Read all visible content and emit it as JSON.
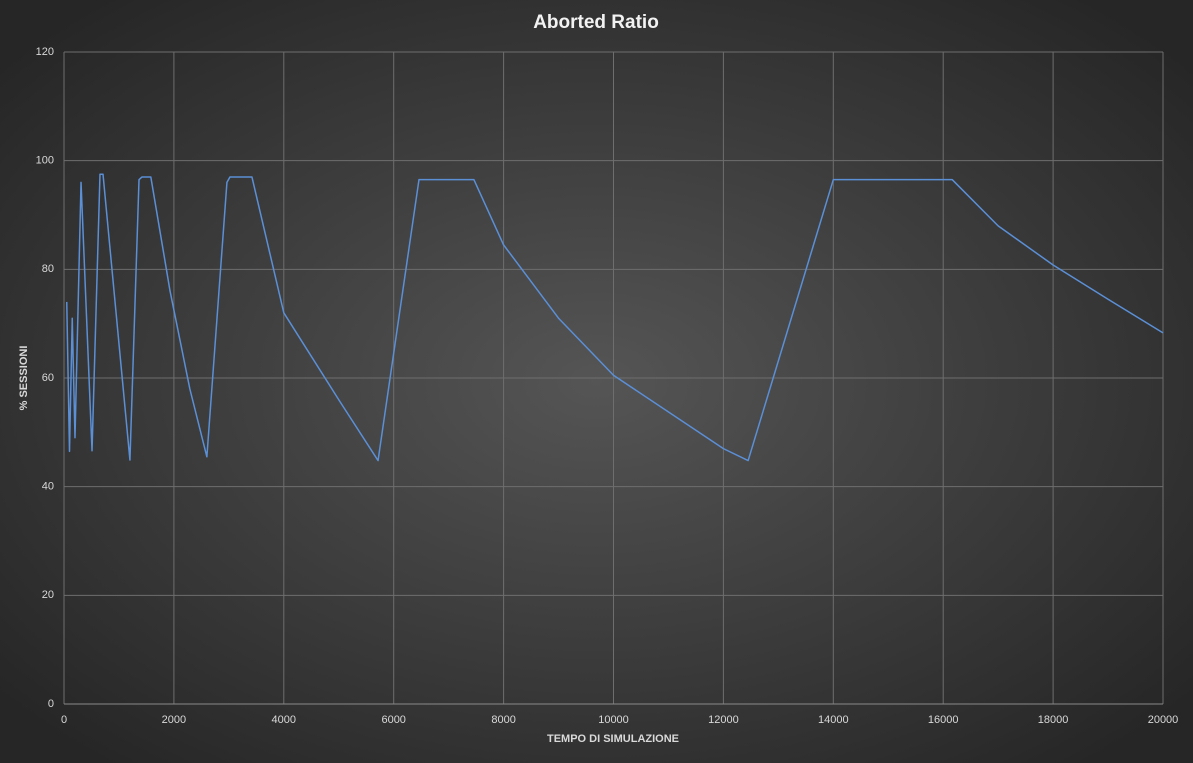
{
  "chart_data": {
    "type": "line",
    "title": "Aborted  Ratio",
    "x_label": "TEMPO DI SIMULAZIONE",
    "y_label": "% SESSIONI",
    "x": [
      50,
      100,
      150,
      200,
      310,
      510,
      655,
      710,
      1200,
      1365,
      1420,
      1580,
      1930,
      2290,
      2600,
      2965,
      3020,
      3420,
      4000,
      5000,
      5715,
      6460,
      7460,
      8000,
      9000,
      10000,
      12000,
      12450,
      14000,
      16165,
      17000,
      18000,
      19000,
      20000
    ],
    "series": [
      {
        "name": "Aborted Ratio",
        "color": "#5b8fd6",
        "values": [
          74,
          46.5,
          71,
          49,
          96,
          46.6,
          97.5,
          97.5,
          44.9,
          96.5,
          97,
          97,
          76,
          58,
          45.5,
          96,
          97,
          97,
          72,
          56,
          44.8,
          96.5,
          96.5,
          84.5,
          71,
          60.5,
          47,
          44.8,
          96.5,
          96.5,
          88,
          80.8,
          74.5,
          68.3
        ]
      }
    ],
    "xlim": [
      0,
      20000
    ],
    "xticks": [
      0,
      2000,
      4000,
      6000,
      8000,
      10000,
      12000,
      14000,
      16000,
      18000,
      20000
    ],
    "ylim": [
      0,
      120
    ],
    "yticks": [
      0,
      20,
      40,
      60,
      80,
      100,
      120
    ],
    "grid": true
  }
}
